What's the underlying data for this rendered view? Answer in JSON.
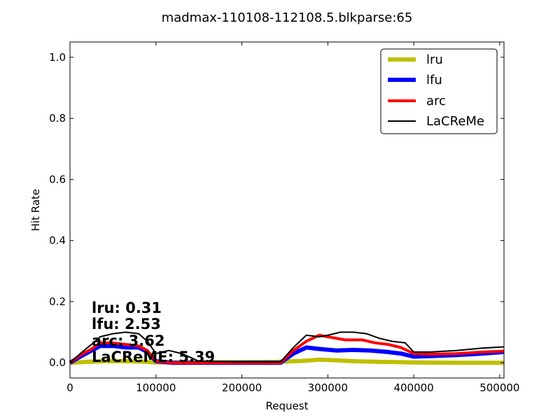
{
  "chart_data": {
    "type": "line",
    "title": "madmax-110108-112108.5.blkparse:65",
    "xlabel": "Request",
    "ylabel": "Hit Rate",
    "xlim": [
      0,
      505000
    ],
    "ylim": [
      -0.05,
      1.05
    ],
    "x_ticks": [
      0,
      100000,
      200000,
      300000,
      400000,
      500000
    ],
    "x_tick_labels": [
      "0",
      "100000",
      "200000",
      "300000",
      "400000",
      "500000"
    ],
    "y_ticks": [
      0.0,
      0.2,
      0.4,
      0.6,
      0.8,
      1.0
    ],
    "y_tick_labels": [
      "0.0",
      "0.2",
      "0.4",
      "0.6",
      "0.8",
      "1.0"
    ],
    "grid": false,
    "legend_position": "top-right",
    "series": [
      {
        "name": "lru",
        "color": "#bfbf00",
        "width": 6,
        "x": [
          0,
          20000,
          40000,
          60000,
          80000,
          100000,
          150000,
          200000,
          240000,
          270000,
          290000,
          310000,
          330000,
          360000,
          400000,
          450000,
          505000
        ],
        "y": [
          0.0,
          0.003,
          0.005,
          0.005,
          0.004,
          0.001,
          0.001,
          0.002,
          0.003,
          0.006,
          0.01,
          0.008,
          0.005,
          0.003,
          0.001,
          0.0,
          0.0
        ]
      },
      {
        "name": "lfu",
        "color": "#0000ff",
        "width": 6,
        "x": [
          0,
          12000,
          25000,
          35000,
          50000,
          65000,
          80000,
          90000,
          100000,
          120000,
          150000,
          200000,
          245000,
          260000,
          275000,
          290000,
          310000,
          330000,
          350000,
          370000,
          385000,
          400000,
          420000,
          450000,
          480000,
          505000
        ],
        "y": [
          0.0,
          0.02,
          0.04,
          0.055,
          0.055,
          0.05,
          0.05,
          0.035,
          0.005,
          0.0,
          0.0,
          0.0,
          0.0,
          0.03,
          0.05,
          0.045,
          0.04,
          0.042,
          0.04,
          0.035,
          0.03,
          0.02,
          0.022,
          0.025,
          0.03,
          0.035
        ]
      },
      {
        "name": "arc",
        "color": "#ff0000",
        "width": 4,
        "x": [
          0,
          12000,
          25000,
          35000,
          50000,
          65000,
          80000,
          90000,
          100000,
          120000,
          150000,
          200000,
          245000,
          260000,
          275000,
          290000,
          300000,
          320000,
          340000,
          355000,
          370000,
          385000,
          400000,
          420000,
          450000,
          480000,
          505000
        ],
        "y": [
          0.0,
          0.025,
          0.045,
          0.065,
          0.065,
          0.06,
          0.055,
          0.04,
          0.005,
          0.0,
          0.0,
          0.0,
          0.0,
          0.04,
          0.07,
          0.09,
          0.085,
          0.075,
          0.075,
          0.065,
          0.06,
          0.05,
          0.03,
          0.028,
          0.03,
          0.035,
          0.038
        ]
      },
      {
        "name": "LaCReMe",
        "color": "#000000",
        "width": 2,
        "x": [
          0,
          12000,
          25000,
          35000,
          50000,
          65000,
          80000,
          90000,
          100000,
          115000,
          130000,
          150000,
          200000,
          245000,
          260000,
          275000,
          290000,
          300000,
          315000,
          330000,
          345000,
          360000,
          375000,
          390000,
          400000,
          420000,
          450000,
          480000,
          505000
        ],
        "y": [
          0.0,
          0.03,
          0.06,
          0.085,
          0.095,
          0.1,
          0.095,
          0.07,
          0.03,
          0.04,
          0.03,
          0.005,
          0.003,
          0.003,
          0.05,
          0.09,
          0.085,
          0.09,
          0.1,
          0.1,
          0.095,
          0.08,
          0.07,
          0.065,
          0.035,
          0.035,
          0.04,
          0.048,
          0.052
        ]
      }
    ],
    "annotations": [
      "lru:  0.31",
      "lfu:  2.53",
      "arc:  3.62",
      "LaCReME:  5.39"
    ]
  }
}
